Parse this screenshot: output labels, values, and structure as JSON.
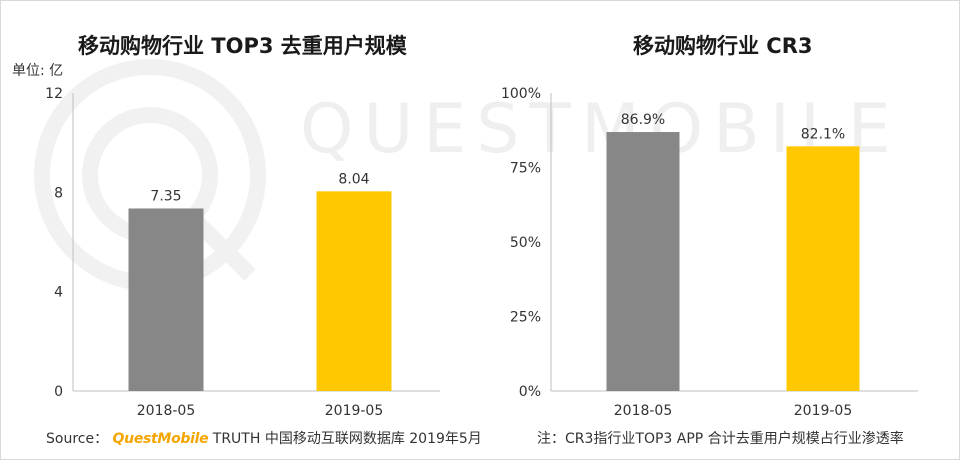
{
  "watermark": "QUESTMOBILE",
  "left_chart_title": "移动购物行业 TOP3 去重用户规模",
  "right_chart_title": "移动购物行业 CR3",
  "unit_label": "单位: 亿",
  "footer": {
    "source_prefix": "Source：",
    "brand": "QuestMobile",
    "source_text": "TRUTH 中国移动互联网数据库 2019年5月",
    "note": "注：CR3指行业TOP3 APP 合计去重用户规模占行业渗透率"
  },
  "colors": {
    "gray": "#878787",
    "yellow": "#ffc800",
    "axis": "#bfbfbf"
  },
  "chart_data": [
    {
      "type": "bar",
      "title": "移动购物行业 TOP3 去重用户规模",
      "categories": [
        "2018-05",
        "2019-05"
      ],
      "values": [
        7.35,
        8.04
      ],
      "value_labels": [
        "7.35",
        "8.04"
      ],
      "bar_colors": [
        "#878787",
        "#ffc800"
      ],
      "ylabel": "单位: 亿",
      "ylim": [
        0,
        12
      ],
      "yticks": [
        0,
        4,
        8,
        12
      ],
      "ytick_labels": [
        "0",
        "4",
        "8",
        "12"
      ],
      "grid": false
    },
    {
      "type": "bar",
      "title": "移动购物行业 CR3",
      "categories": [
        "2018-05",
        "2019-05"
      ],
      "values": [
        86.9,
        82.1
      ],
      "value_labels": [
        "86.9%",
        "82.1%"
      ],
      "bar_colors": [
        "#878787",
        "#ffc800"
      ],
      "ylim": [
        0,
        100
      ],
      "yticks": [
        0,
        25,
        50,
        75,
        100
      ],
      "ytick_labels": [
        "0%",
        "25%",
        "50%",
        "75%",
        "100%"
      ],
      "grid": false
    }
  ]
}
